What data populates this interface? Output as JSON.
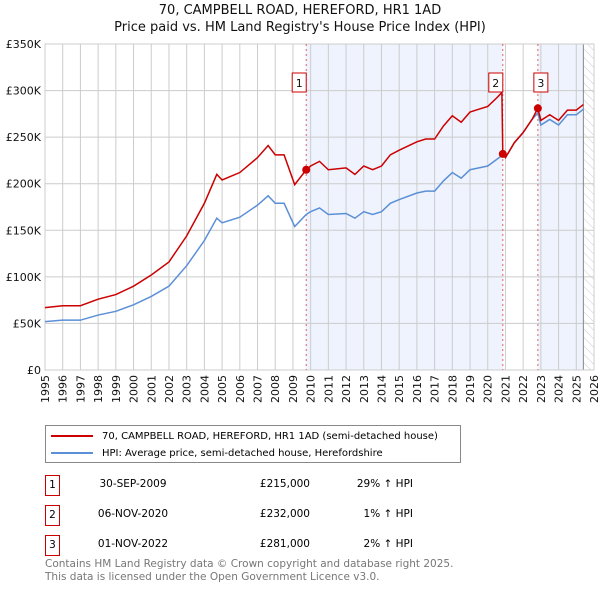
{
  "chart_data": {
    "type": "line",
    "title": "70, CAMPBELL ROAD, HEREFORD, HR1 1AD",
    "subtitle": "Price paid vs. HM Land Registry's House Price Index (HPI)",
    "xlim": [
      1995,
      2026
    ],
    "ylim": [
      0,
      350000
    ],
    "y_ticks": [
      {
        "v": 0,
        "label": "£0"
      },
      {
        "v": 50000,
        "label": "£50K"
      },
      {
        "v": 100000,
        "label": "£100K"
      },
      {
        "v": 150000,
        "label": "£150K"
      },
      {
        "v": 200000,
        "label": "£200K"
      },
      {
        "v": 250000,
        "label": "£250K"
      },
      {
        "v": 300000,
        "label": "£300K"
      },
      {
        "v": 350000,
        "label": "£350K"
      }
    ],
    "x_ticks": [
      "1995",
      "1996",
      "1997",
      "1998",
      "1999",
      "2000",
      "2001",
      "2002",
      "2003",
      "2004",
      "2005",
      "2006",
      "2007",
      "2008",
      "2009",
      "2010",
      "2011",
      "2012",
      "2013",
      "2014",
      "2015",
      "2016",
      "2017",
      "2018",
      "2019",
      "2020",
      "2021",
      "2022",
      "2023",
      "2024",
      "2025",
      "2026"
    ],
    "grid": true,
    "legend_placement": "below",
    "series": [
      {
        "name": "70, CAMPBELL ROAD, HEREFORD, HR1 1AD (semi-detached house)",
        "color": "#cc0000",
        "x": [
          1995,
          1996,
          1997,
          1998,
          1999,
          2000,
          2001,
          2002,
          2003,
          2004,
          2004.7,
          2005,
          2006,
          2007,
          2007.6,
          2008,
          2008.5,
          2009.1,
          2009.75,
          2010,
          2010.5,
          2011,
          2012,
          2012.5,
          2013,
          2013.5,
          2014,
          2014.5,
          2015,
          2016,
          2016.5,
          2017,
          2017.5,
          2018,
          2018.5,
          2019,
          2019.5,
          2020,
          2020.5,
          2020.8,
          2020.85,
          2021,
          2021.5,
          2022,
          2022.5,
          2022.83,
          2023,
          2023.5,
          2024,
          2024.5,
          2025,
          2025.4
        ],
        "values": [
          67000,
          69000,
          69000,
          76000,
          81000,
          90000,
          102000,
          116000,
          144000,
          179000,
          210000,
          204000,
          212000,
          228000,
          241000,
          231000,
          231000,
          199000,
          215000,
          219000,
          224000,
          215000,
          217000,
          210000,
          219000,
          215000,
          219000,
          231000,
          236000,
          245000,
          248000,
          248000,
          262000,
          273000,
          266000,
          277000,
          280000,
          283000,
          292000,
          298000,
          232000,
          228000,
          244000,
          255000,
          269000,
          281000,
          268000,
          274000,
          268000,
          279000,
          279000,
          285000
        ]
      },
      {
        "name": "HPI: Average price, semi-detached house, Herefordshire",
        "color": "#5b8fd6",
        "x": [
          1995,
          1996,
          1997,
          1998,
          1999,
          2000,
          2001,
          2002,
          2003,
          2004,
          2004.7,
          2005,
          2006,
          2007,
          2007.6,
          2008,
          2008.5,
          2009.1,
          2009.75,
          2010,
          2010.5,
          2011,
          2012,
          2012.5,
          2013,
          2013.5,
          2014,
          2014.5,
          2015,
          2016,
          2016.5,
          2017,
          2017.5,
          2018,
          2018.5,
          2019,
          2019.5,
          2020,
          2020.5,
          2020.85,
          2021,
          2021.5,
          2022,
          2022.5,
          2022.83,
          2023,
          2023.5,
          2024,
          2024.5,
          2025,
          2025.4
        ],
        "values": [
          52000,
          53500,
          53500,
          59000,
          63000,
          70000,
          79000,
          90000,
          112000,
          139000,
          163000,
          158000,
          164000,
          177000,
          187000,
          179000,
          179000,
          154000,
          167000,
          170000,
          174000,
          167000,
          168000,
          163000,
          170000,
          167000,
          170000,
          179000,
          183000,
          190000,
          192000,
          192000,
          203000,
          212000,
          206000,
          215000,
          217000,
          219000,
          226000,
          231000,
          228000,
          244000,
          255000,
          269000,
          276000,
          263000,
          269000,
          263000,
          274000,
          274000,
          280000
        ]
      }
    ],
    "sales": [
      {
        "id": "1",
        "x": 2009.75,
        "value": 215000,
        "date": "30-SEP-2009",
        "price": "£215,000",
        "hpi": "29% ↑ HPI"
      },
      {
        "id": "2",
        "x": 2020.85,
        "value": 232000,
        "date": "06-NOV-2020",
        "price": "£232,000",
        "hpi": "1% ↑ HPI"
      },
      {
        "id": "3",
        "x": 2022.83,
        "value": 281000,
        "date": "01-NOV-2022",
        "price": "£281,000",
        "hpi": "2% ↑ HPI"
      }
    ],
    "shaded_ranges": [
      [
        2009.75,
        2020.85
      ],
      [
        2022.83,
        2025.4
      ]
    ],
    "projection_from": 2025.4
  },
  "footer": {
    "line1": "Contains HM Land Registry data © Crown copyright and database right 2025.",
    "line2": "This data is licensed under the Open Government Licence v3.0."
  }
}
